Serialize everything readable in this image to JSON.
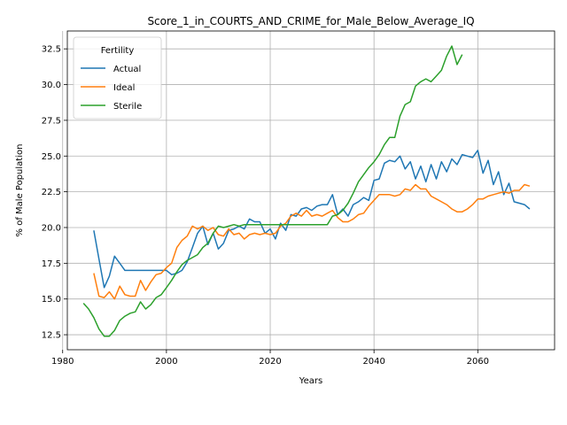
{
  "chart_data": {
    "type": "line",
    "title": "Score_1_in_COURTS_AND_CRIME_for_Male_Below_Average_IQ",
    "xlabel": "Years",
    "ylabel": "% of Male Population",
    "xlim": [
      1980.9,
      2074.8
    ],
    "ylim": [
      11.45,
      33.75
    ],
    "xticks": [
      1980,
      2000,
      2020,
      2040,
      2060
    ],
    "yticks": [
      12.5,
      15.0,
      17.5,
      20.0,
      22.5,
      25.0,
      27.5,
      30.0,
      32.5
    ],
    "xtick_labels": [
      "1980",
      "2000",
      "2020",
      "2040",
      "2060"
    ],
    "ytick_labels": [
      "12.5",
      "15.0",
      "17.5",
      "20.0",
      "22.5",
      "25.0",
      "27.5",
      "30.0",
      "32.5"
    ],
    "grid": true,
    "legend": {
      "title": "Fertility",
      "placement": "top-left"
    },
    "series": [
      {
        "name": "Actual",
        "color": "#1f77b4",
        "x": [
          1986,
          1987,
          1988,
          1989,
          1990,
          1991,
          1992,
          1993,
          1994,
          1995,
          1996,
          1997,
          1998,
          1999,
          2000,
          2001,
          2002,
          2003,
          2004,
          2005,
          2006,
          2007,
          2008,
          2009,
          2010,
          2011,
          2012,
          2013,
          2014,
          2015,
          2016,
          2017,
          2018,
          2019,
          2020,
          2021,
          2022,
          2023,
          2024,
          2025,
          2026,
          2027,
          2028,
          2029,
          2030,
          2031,
          2032,
          2033,
          2034,
          2035,
          2036,
          2037,
          2038,
          2039,
          2040,
          2041,
          2042,
          2043,
          2044,
          2045,
          2046,
          2047,
          2048,
          2049,
          2050,
          2051,
          2052,
          2053,
          2054,
          2055,
          2056,
          2057,
          2058,
          2059,
          2060,
          2061,
          2062,
          2063,
          2064,
          2065,
          2066,
          2067,
          2068,
          2069,
          2070
        ],
        "y": [
          19.8,
          17.8,
          15.8,
          16.6,
          18.0,
          17.5,
          17.0,
          17.0,
          17.0,
          17.0,
          17.0,
          17.0,
          17.0,
          17.0,
          17.0,
          16.7,
          16.8,
          17.0,
          17.6,
          18.6,
          19.6,
          20.1,
          18.8,
          19.6,
          18.5,
          18.9,
          19.8,
          19.9,
          20.1,
          19.9,
          20.6,
          20.4,
          20.4,
          19.6,
          19.9,
          19.2,
          20.3,
          19.8,
          20.9,
          20.8,
          21.3,
          21.4,
          21.2,
          21.5,
          21.6,
          21.6,
          22.3,
          20.9,
          21.3,
          20.8,
          21.6,
          21.8,
          22.1,
          21.9,
          23.3,
          23.4,
          24.5,
          24.7,
          24.6,
          25.0,
          24.1,
          24.6,
          23.4,
          24.3,
          23.2,
          24.4,
          23.4,
          24.6,
          23.9,
          24.8,
          24.4,
          25.1,
          25.0,
          24.9,
          25.4,
          23.8,
          24.7,
          23.0,
          23.9,
          22.3,
          23.1,
          21.8,
          21.7,
          21.6,
          21.3
        ]
      },
      {
        "name": "Ideal",
        "color": "#ff7f0e",
        "x": [
          1986,
          1987,
          1988,
          1989,
          1990,
          1991,
          1992,
          1993,
          1994,
          1995,
          1996,
          1997,
          1998,
          1999,
          2000,
          2001,
          2002,
          2003,
          2004,
          2005,
          2006,
          2007,
          2008,
          2009,
          2010,
          2011,
          2012,
          2013,
          2014,
          2015,
          2016,
          2017,
          2018,
          2019,
          2020,
          2021,
          2022,
          2023,
          2024,
          2025,
          2026,
          2027,
          2028,
          2029,
          2030,
          2031,
          2032,
          2033,
          2034,
          2035,
          2036,
          2037,
          2038,
          2039,
          2040,
          2041,
          2042,
          2043,
          2044,
          2045,
          2046,
          2047,
          2048,
          2049,
          2050,
          2051,
          2052,
          2053,
          2054,
          2055,
          2056,
          2057,
          2058,
          2059,
          2060,
          2061,
          2062,
          2063,
          2064,
          2065,
          2066,
          2067,
          2068,
          2069,
          2070
        ],
        "y": [
          16.8,
          15.2,
          15.1,
          15.5,
          15.0,
          15.9,
          15.3,
          15.2,
          15.2,
          16.3,
          15.6,
          16.2,
          16.7,
          16.8,
          17.2,
          17.5,
          18.6,
          19.1,
          19.4,
          20.1,
          19.9,
          20.1,
          19.8,
          20.0,
          19.5,
          19.4,
          19.9,
          19.5,
          19.6,
          19.2,
          19.5,
          19.6,
          19.5,
          19.6,
          19.5,
          19.6,
          20.1,
          20.3,
          20.8,
          21.0,
          20.8,
          21.2,
          20.8,
          20.9,
          20.8,
          21.0,
          21.2,
          20.7,
          20.4,
          20.4,
          20.6,
          20.9,
          21.0,
          21.5,
          21.9,
          22.3,
          22.3,
          22.3,
          22.2,
          22.3,
          22.7,
          22.6,
          23.0,
          22.7,
          22.7,
          22.2,
          22.0,
          21.8,
          21.6,
          21.3,
          21.1,
          21.1,
          21.3,
          21.6,
          22.0,
          22.0,
          22.2,
          22.3,
          22.4,
          22.5,
          22.4,
          22.6,
          22.6,
          23.0,
          22.9
        ]
      },
      {
        "name": "Sterile",
        "color": "#2ca02c",
        "x": [
          1984,
          1985,
          1986,
          1987,
          1988,
          1989,
          1990,
          1991,
          1992,
          1993,
          1994,
          1995,
          1996,
          1997,
          1998,
          1999,
          2000,
          2001,
          2002,
          2003,
          2004,
          2005,
          2006,
          2007,
          2008,
          2009,
          2010,
          2011,
          2012,
          2013,
          2014,
          2015,
          2016,
          2017,
          2018,
          2019,
          2020,
          2021,
          2022,
          2023,
          2024,
          2025,
          2026,
          2027,
          2028,
          2029,
          2030,
          2031,
          2032,
          2033,
          2034,
          2035,
          2036,
          2037,
          2038,
          2039,
          2040,
          2041,
          2042,
          2043,
          2044,
          2045,
          2046,
          2047,
          2048,
          2049,
          2050,
          2051,
          2052,
          2053,
          2054,
          2055,
          2056,
          2057
        ],
        "y": [
          14.7,
          14.3,
          13.7,
          12.9,
          12.4,
          12.4,
          12.8,
          13.5,
          13.8,
          14.0,
          14.1,
          14.8,
          14.3,
          14.6,
          15.1,
          15.3,
          15.8,
          16.3,
          16.9,
          17.4,
          17.7,
          17.9,
          18.1,
          18.6,
          18.9,
          19.6,
          20.1,
          20.0,
          20.1,
          20.2,
          20.1,
          20.2,
          20.2,
          20.2,
          20.2,
          20.2,
          20.2,
          20.2,
          20.2,
          20.2,
          20.2,
          20.2,
          20.2,
          20.2,
          20.2,
          20.2,
          20.2,
          20.2,
          20.8,
          20.9,
          21.2,
          21.7,
          22.4,
          23.2,
          23.7,
          24.2,
          24.6,
          25.1,
          25.8,
          26.3,
          26.3,
          27.8,
          28.6,
          28.8,
          29.9,
          30.2,
          30.4,
          30.2,
          30.6,
          31.0,
          32.0,
          32.7,
          31.4,
          32.1
        ]
      }
    ]
  }
}
